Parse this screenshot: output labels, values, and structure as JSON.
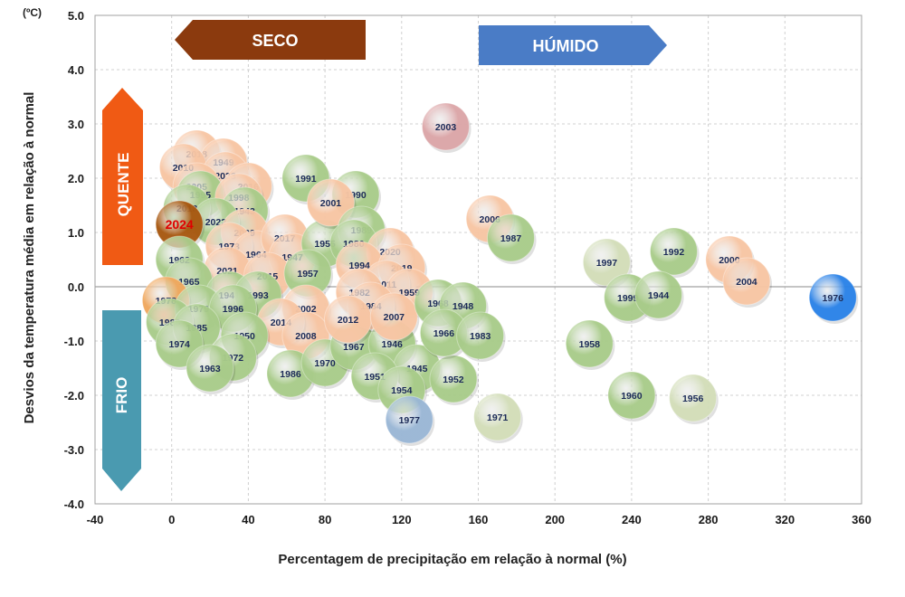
{
  "chart_data": {
    "type": "scatter",
    "title": "",
    "xlabel": "Percentagem de precipitação em relação à normal (%)",
    "ylabel": "Desvios da temperatura média em relação à normal",
    "y_unit": "(ºC)",
    "xlim": [
      -40,
      360
    ],
    "ylim": [
      -4.0,
      5.0
    ],
    "x_ticks": [
      -40,
      0,
      40,
      80,
      120,
      160,
      200,
      240,
      280,
      320,
      360
    ],
    "y_ticks": [
      "-4.0",
      "-3.0",
      "-2.0",
      "-1.0",
      "0.0",
      "1.0",
      "2.0",
      "3.0",
      "4.0",
      "5.0"
    ],
    "grid": true,
    "zero_line": true,
    "highlight_year": "2024",
    "colors": {
      "green": "#a9cc8a",
      "light_green": "#d3deb9",
      "peach": "#f8c6a4",
      "pink": "#dca6a8",
      "blue": "#2a82e8",
      "light_blue": "#9ab7d6",
      "orange": "#f0a85e",
      "highlight": "#a85810",
      "seco_arrow": "#8b3a0e",
      "humido_arrow": "#4a7cc6",
      "quente_arrow": "#f05a14",
      "frio_arrow": "#4a9ab0"
    },
    "annotations": {
      "seco": "SECO",
      "humido": "HÚMIDO",
      "quente": "QUENTE",
      "frio": "FRIO"
    },
    "points": [
      {
        "year": "2018",
        "x": 13,
        "y": 2.45,
        "color": "peach"
      },
      {
        "year": "1949",
        "x": 27,
        "y": 2.3,
        "color": "peach"
      },
      {
        "year": "2010",
        "x": 6,
        "y": 2.2,
        "color": "peach"
      },
      {
        "year": "2023",
        "x": 28,
        "y": 2.05,
        "color": "peach"
      },
      {
        "year": "2016",
        "x": 40,
        "y": 1.85,
        "color": "peach"
      },
      {
        "year": "2005",
        "x": 13,
        "y": 1.85,
        "color": "peach"
      },
      {
        "year": "1995",
        "x": 15,
        "y": 1.7,
        "color": "green"
      },
      {
        "year": "1998",
        "x": 35,
        "y": 1.65,
        "color": "peach"
      },
      {
        "year": "2013",
        "x": 8,
        "y": 1.45,
        "color": "green"
      },
      {
        "year": "1943",
        "x": 38,
        "y": 1.4,
        "color": "green"
      },
      {
        "year": "2022",
        "x": 23,
        "y": 1.2,
        "color": "green"
      },
      {
        "year": "2024",
        "x": 4,
        "y": 1.15,
        "color": "highlight"
      },
      {
        "year": "2009",
        "x": 38,
        "y": 1.0,
        "color": "peach"
      },
      {
        "year": "1973",
        "x": 30,
        "y": 0.75,
        "color": "peach"
      },
      {
        "year": "1964",
        "x": 44,
        "y": 0.6,
        "color": "peach"
      },
      {
        "year": "2017",
        "x": 59,
        "y": 0.9,
        "color": "peach"
      },
      {
        "year": "1947",
        "x": 63,
        "y": 0.55,
        "color": "peach"
      },
      {
        "year": "1955",
        "x": 80,
        "y": 0.8,
        "color": "green"
      },
      {
        "year": "1962",
        "x": 4,
        "y": 0.5,
        "color": "green"
      },
      {
        "year": "2021",
        "x": 29,
        "y": 0.3,
        "color": "peach"
      },
      {
        "year": "2015",
        "x": 50,
        "y": 0.2,
        "color": "peach"
      },
      {
        "year": "1957",
        "x": 71,
        "y": 0.25,
        "color": "green"
      },
      {
        "year": "1965",
        "x": 9,
        "y": 0.1,
        "color": "green"
      },
      {
        "year": "1941",
        "x": 30,
        "y": -0.15,
        "color": "green"
      },
      {
        "year": "1993",
        "x": 45,
        "y": -0.15,
        "color": "green"
      },
      {
        "year": "1978",
        "x": -3,
        "y": -0.25,
        "color": "orange"
      },
      {
        "year": "1979",
        "x": 14,
        "y": -0.4,
        "color": "green"
      },
      {
        "year": "1996",
        "x": 32,
        "y": -0.4,
        "color": "green"
      },
      {
        "year": "1988",
        "x": -1,
        "y": -0.65,
        "color": "green"
      },
      {
        "year": "1985",
        "x": 13,
        "y": -0.75,
        "color": "green"
      },
      {
        "year": "1974",
        "x": 4,
        "y": -1.05,
        "color": "green"
      },
      {
        "year": "2002",
        "x": 70,
        "y": -0.4,
        "color": "peach"
      },
      {
        "year": "2014",
        "x": 57,
        "y": -0.65,
        "color": "peach"
      },
      {
        "year": "2008",
        "x": 70,
        "y": -0.9,
        "color": "peach"
      },
      {
        "year": "1950",
        "x": 38,
        "y": -0.9,
        "color": "green"
      },
      {
        "year": "1972",
        "x": 32,
        "y": -1.3,
        "color": "green"
      },
      {
        "year": "1963",
        "x": 20,
        "y": -1.5,
        "color": "green"
      },
      {
        "year": "1986",
        "x": 62,
        "y": -1.6,
        "color": "green"
      },
      {
        "year": "1970",
        "x": 80,
        "y": -1.4,
        "color": "green"
      },
      {
        "year": "1967",
        "x": 95,
        "y": -1.1,
        "color": "green"
      },
      {
        "year": "1946",
        "x": 115,
        "y": -1.05,
        "color": "green"
      },
      {
        "year": "1945",
        "x": 128,
        "y": -1.5,
        "color": "green"
      },
      {
        "year": "1951",
        "x": 106,
        "y": -1.65,
        "color": "green"
      },
      {
        "year": "1952",
        "x": 147,
        "y": -1.7,
        "color": "green"
      },
      {
        "year": "1954",
        "x": 120,
        "y": -1.9,
        "color": "green"
      },
      {
        "year": "1977",
        "x": 124,
        "y": -2.45,
        "color": "light_blue"
      },
      {
        "year": "1971",
        "x": 170,
        "y": -2.4,
        "color": "light_green"
      },
      {
        "year": "1991",
        "x": 70,
        "y": 2.0,
        "color": "green"
      },
      {
        "year": "1990",
        "x": 96,
        "y": 1.7,
        "color": "green"
      },
      {
        "year": "2001",
        "x": 83,
        "y": 1.55,
        "color": "peach"
      },
      {
        "year": "1989",
        "x": 99,
        "y": 1.05,
        "color": "green"
      },
      {
        "year": "1980",
        "x": 95,
        "y": 0.8,
        "color": "green"
      },
      {
        "year": "2020",
        "x": 114,
        "y": 0.65,
        "color": "peach"
      },
      {
        "year": "1994",
        "x": 98,
        "y": 0.4,
        "color": "peach"
      },
      {
        "year": "2019",
        "x": 120,
        "y": 0.35,
        "color": "peach"
      },
      {
        "year": "2011",
        "x": 112,
        "y": 0.05,
        "color": "peach"
      },
      {
        "year": "1982",
        "x": 98,
        "y": -0.1,
        "color": "peach"
      },
      {
        "year": "1959",
        "x": 124,
        "y": -0.1,
        "color": "peach"
      },
      {
        "year": "1984",
        "x": 104,
        "y": -0.35,
        "color": "peach"
      },
      {
        "year": "2012",
        "x": 92,
        "y": -0.6,
        "color": "peach"
      },
      {
        "year": "2007",
        "x": 116,
        "y": -0.55,
        "color": "peach"
      },
      {
        "year": "1968",
        "x": 139,
        "y": -0.3,
        "color": "green"
      },
      {
        "year": "1948",
        "x": 152,
        "y": -0.35,
        "color": "green"
      },
      {
        "year": "1966",
        "x": 142,
        "y": -0.85,
        "color": "green"
      },
      {
        "year": "1983",
        "x": 161,
        "y": -0.9,
        "color": "green"
      },
      {
        "year": "2003",
        "x": 143,
        "y": 2.95,
        "color": "pink"
      },
      {
        "year": "2006",
        "x": 166,
        "y": 1.25,
        "color": "peach"
      },
      {
        "year": "1987",
        "x": 177,
        "y": 0.9,
        "color": "green"
      },
      {
        "year": "1997",
        "x": 227,
        "y": 0.45,
        "color": "light_green"
      },
      {
        "year": "1992",
        "x": 262,
        "y": 0.65,
        "color": "green"
      },
      {
        "year": "2000",
        "x": 291,
        "y": 0.5,
        "color": "peach"
      },
      {
        "year": "2004",
        "x": 300,
        "y": 0.1,
        "color": "peach"
      },
      {
        "year": "1999",
        "x": 238,
        "y": -0.2,
        "color": "green"
      },
      {
        "year": "1944",
        "x": 254,
        "y": -0.15,
        "color": "green"
      },
      {
        "year": "1976",
        "x": 345,
        "y": -0.2,
        "color": "blue"
      },
      {
        "year": "1958",
        "x": 218,
        "y": -1.05,
        "color": "green"
      },
      {
        "year": "1960",
        "x": 240,
        "y": -2.0,
        "color": "green"
      },
      {
        "year": "1956",
        "x": 272,
        "y": -2.05,
        "color": "light_green"
      }
    ]
  }
}
